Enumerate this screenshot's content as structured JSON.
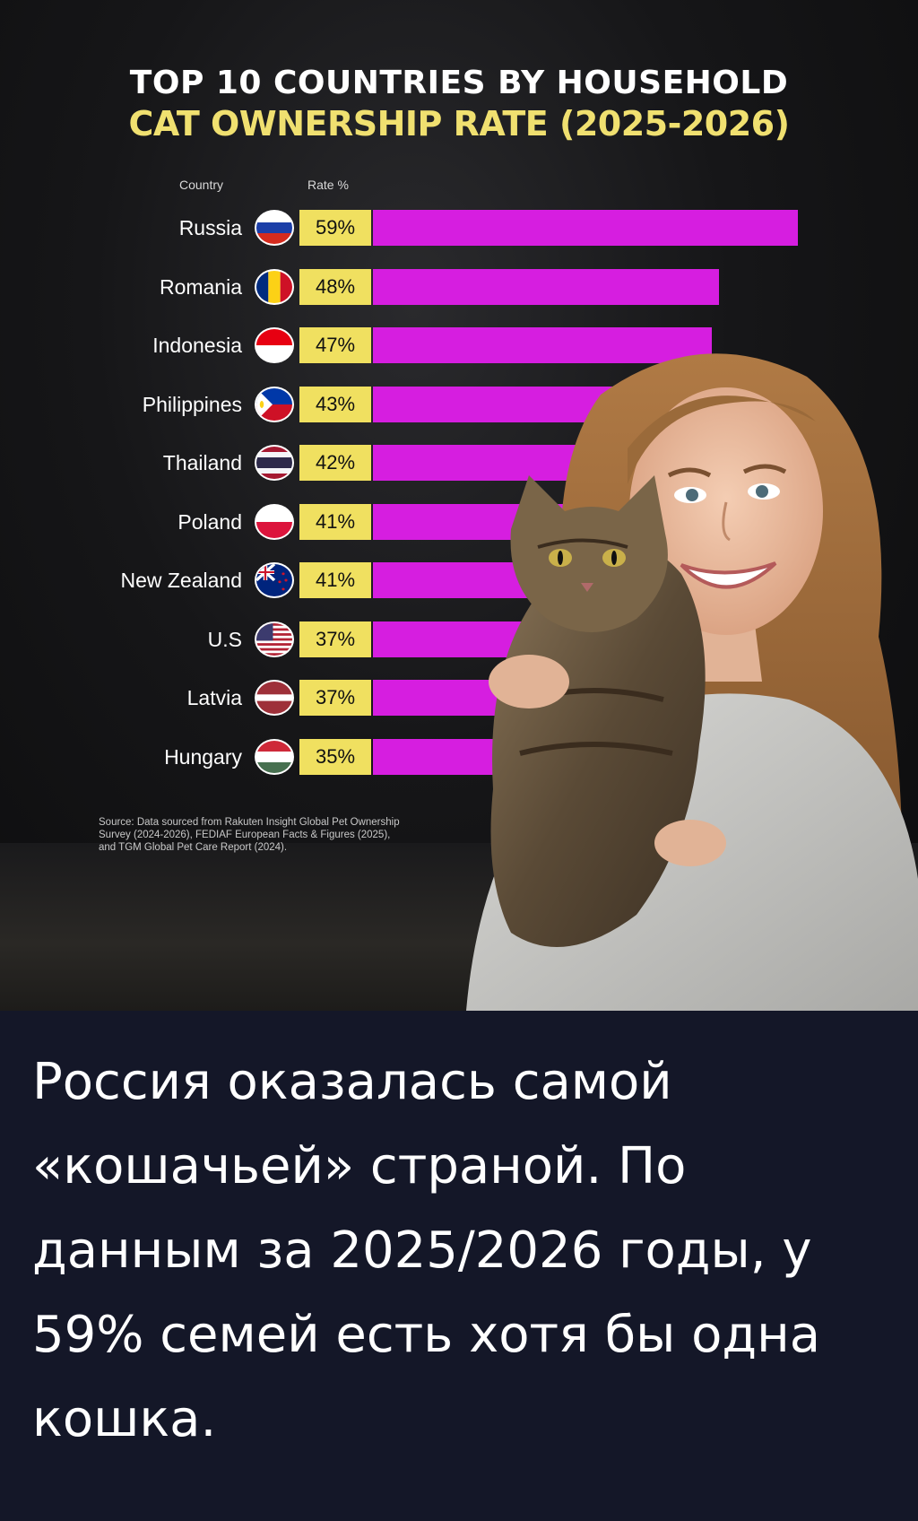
{
  "title_line1": "TOP 10 COUNTRIES BY HOUSEHOLD",
  "title_line2": "CAT OWNERSHIP RATE (2025-2026)",
  "column_headers": {
    "country": "Country",
    "rate": "Rate %"
  },
  "source": "Source: Data sourced from Rakuten Insight Global Pet Ownership Survey (2024-2026), FEDIAF European Facts & Figures (2025), and TGM Global Pet Care Report (2024).",
  "caption": "Россия оказалась самой «кошачьей» страной. По данным за 2025/2026 годы, у 59% семей есть хотя бы одна кошка.",
  "colors": {
    "bar": "#d61ee0",
    "label_box": "#f0e060",
    "title_accent": "#f0e070",
    "caption_bg": "#141728"
  },
  "chart_data": {
    "type": "bar",
    "orientation": "horizontal",
    "title": "TOP 10 COUNTRIES BY HOUSEHOLD CAT OWNERSHIP RATE (2025-2026)",
    "xlabel": "Rate %",
    "ylabel": "Country",
    "categories": [
      "Russia",
      "Romania",
      "Indonesia",
      "Philippines",
      "Thailand",
      "Poland",
      "New Zealand",
      "U.S",
      "Latvia",
      "Hungary"
    ],
    "values": [
      59,
      48,
      47,
      43,
      42,
      41,
      41,
      37,
      37,
      35
    ],
    "value_labels": [
      "59%",
      "48%",
      "47%",
      "43%",
      "42%",
      "41%",
      "41%",
      "37%",
      "37%",
      "35%"
    ],
    "flags": [
      "russia-flag-icon",
      "romania-flag-icon",
      "indonesia-flag-icon",
      "philippines-flag-icon",
      "thailand-flag-icon",
      "poland-flag-icon",
      "new-zealand-flag-icon",
      "us-flag-icon",
      "latvia-flag-icon",
      "hungary-flag-icon"
    ],
    "xlim": [
      0,
      59
    ],
    "grid": false,
    "legend": "none"
  }
}
